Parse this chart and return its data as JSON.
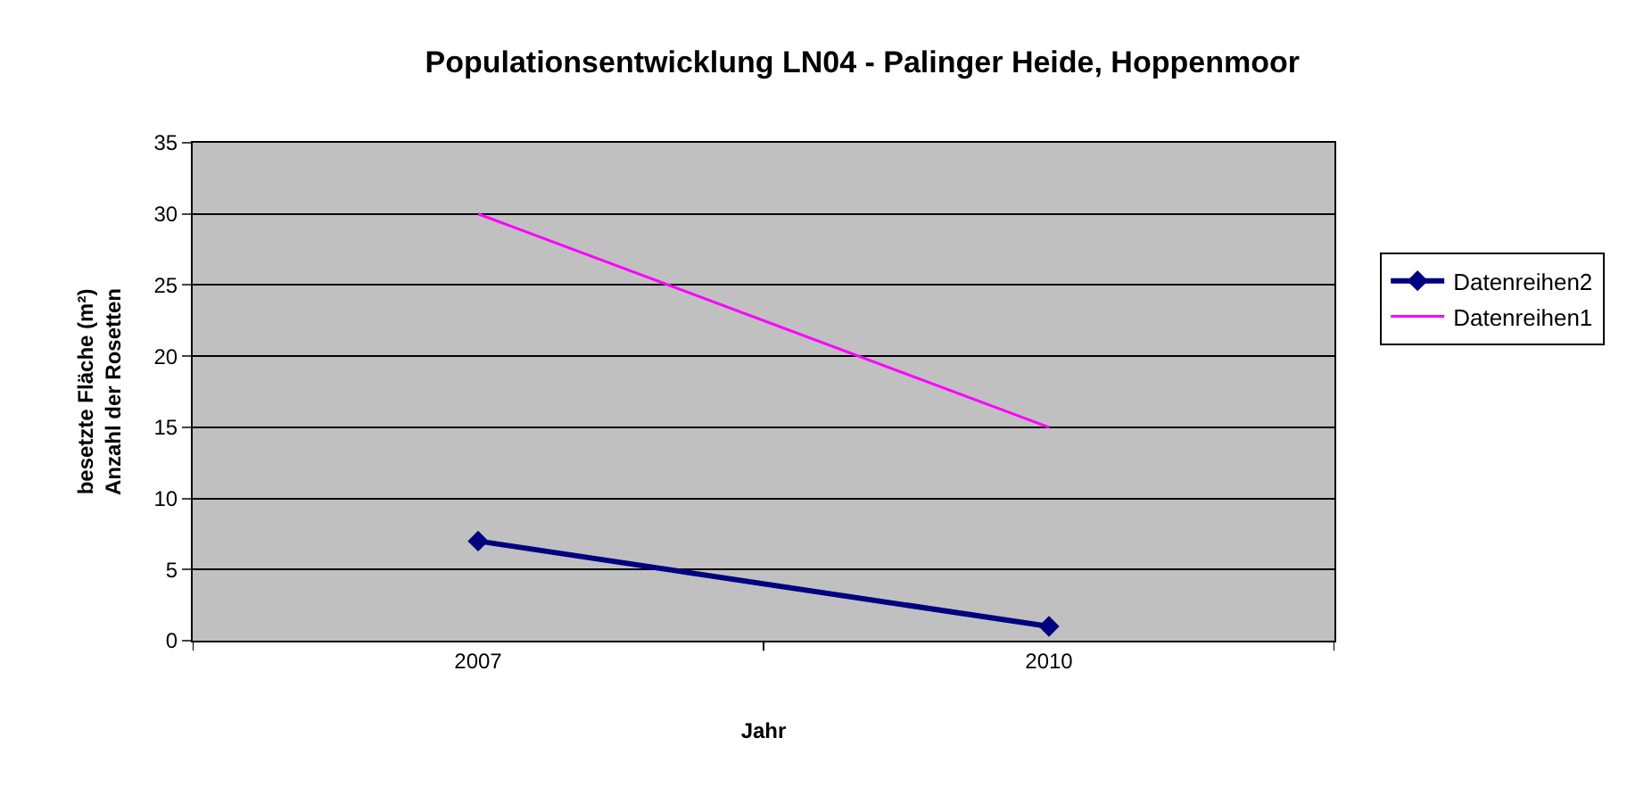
{
  "chart_data": {
    "type": "line",
    "title": "Populationsentwicklung LN04 - Palinger Heide, Hoppenmoor",
    "xlabel": "Jahr",
    "ylabel": "besetzte Fläche (m²)\nAnzahl der Rosetten",
    "categories": [
      "2007",
      "2010"
    ],
    "series": [
      {
        "name": "Datenreihen2",
        "color": "#000080",
        "values": [
          7,
          1
        ],
        "marker": "diamond"
      },
      {
        "name": "Datenreihen1",
        "color": "#ff00ff",
        "values": [
          30,
          15
        ],
        "marker": "none"
      }
    ],
    "ylim": [
      0,
      35
    ],
    "yticks": [
      0,
      5,
      10,
      15,
      20,
      25,
      30,
      35
    ],
    "grid": "y",
    "legend": "right"
  }
}
